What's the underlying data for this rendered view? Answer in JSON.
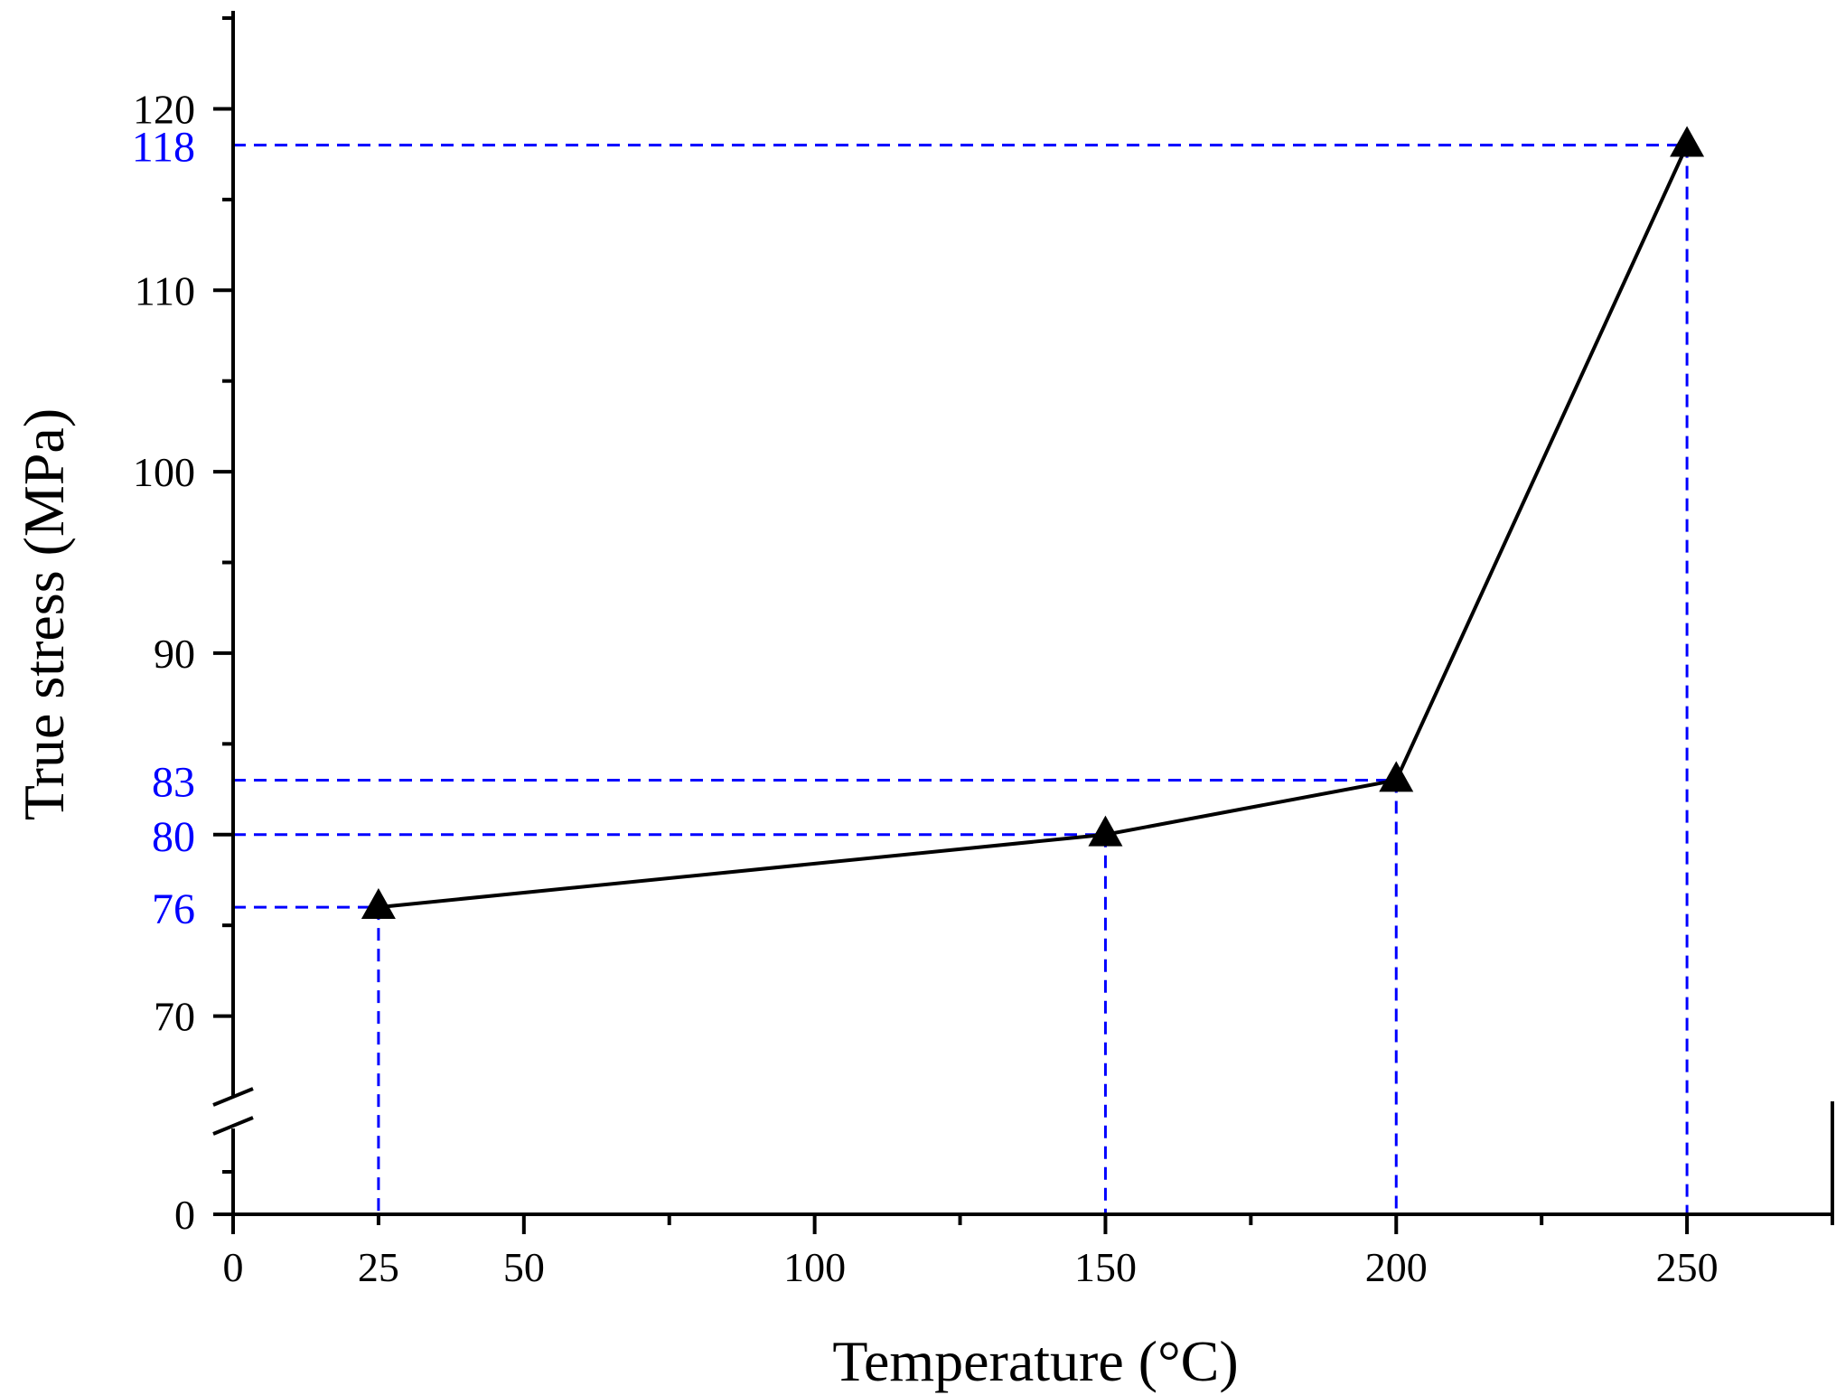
{
  "chart_data": {
    "type": "line",
    "xlabel": "Temperature (°C)",
    "ylabel": "True stress (MPa)",
    "xlim": [
      0,
      275
    ],
    "ylim_upper": [
      65,
      125
    ],
    "ylim_lower": [
      0,
      65
    ],
    "axis_break": "y",
    "x_ticks": [
      {
        "value": 0,
        "label": "0"
      },
      {
        "value": 25,
        "label": "25"
      },
      {
        "value": 50,
        "label": "50"
      },
      {
        "value": 100,
        "label": "100"
      },
      {
        "value": 150,
        "label": "150"
      },
      {
        "value": 200,
        "label": "200"
      },
      {
        "value": 250,
        "label": "250"
      }
    ],
    "y_ticks": [
      {
        "value": 0,
        "label": "0"
      },
      {
        "value": 70,
        "label": "70"
      },
      {
        "value": 90,
        "label": "90"
      },
      {
        "value": 100,
        "label": "100"
      },
      {
        "value": 110,
        "label": "110"
      },
      {
        "value": 120,
        "label": "120"
      }
    ],
    "annotated_y": [
      {
        "value": 118,
        "label": "118"
      },
      {
        "value": 83,
        "label": "83"
      },
      {
        "value": 80,
        "label": "80"
      },
      {
        "value": 76,
        "label": "76"
      }
    ],
    "series": [
      {
        "x": [
          25,
          150,
          200,
          250
        ],
        "y": [
          76,
          80,
          83,
          118
        ],
        "marker": "triangle",
        "color": "#000000"
      }
    ],
    "guide_color": "#0000ff",
    "grid": false
  }
}
